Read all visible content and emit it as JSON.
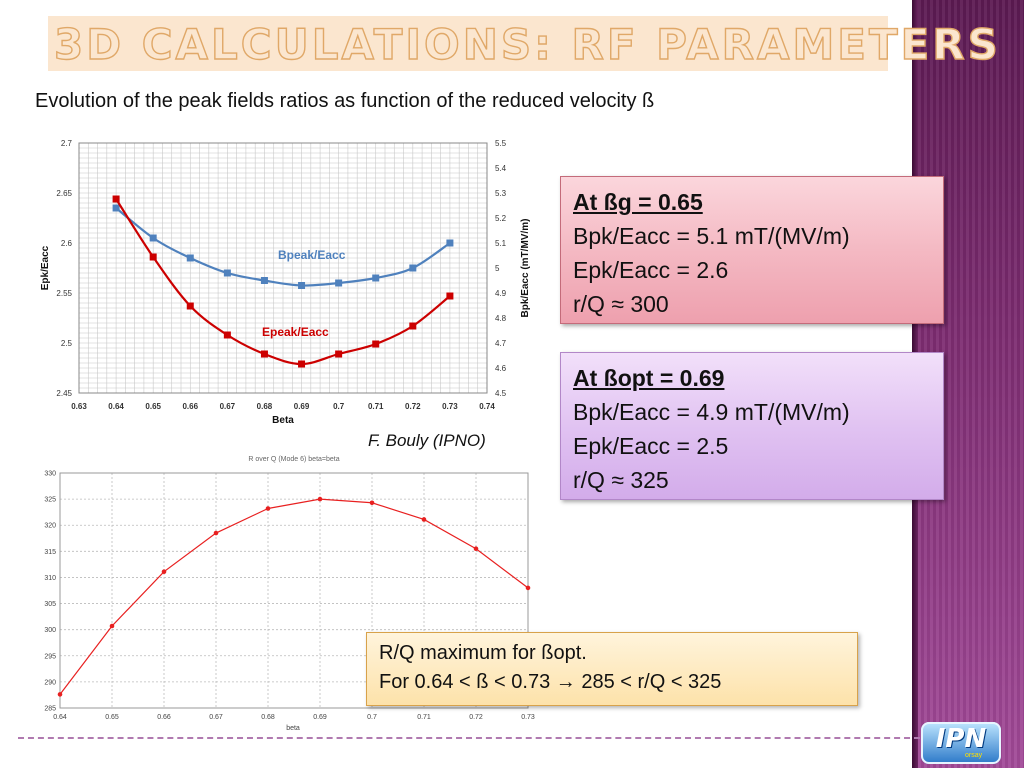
{
  "slide": {
    "title": "3D CALCULATIONS: RF PARAMETERS",
    "subtitle": "Evolution of the peak fields ratios as function of the reduced velocity ß",
    "credit": "F. Bouly (IPNO)"
  },
  "colors": {
    "accent": "#e0a868",
    "side_panel": "#7e2d72",
    "bpk_series": "#4f81bd",
    "epk_series": "#cc0000",
    "rq_series": "#e82020"
  },
  "boxes": [
    {
      "heading": "At ßg = 0.65",
      "lines": [
        "Bpk/Eacc = 5.1 mT/(MV/m)",
        "Epk/Eacc = 2.6",
        "r/Q ≈ 300"
      ]
    },
    {
      "heading": "At ßopt = 0.69",
      "lines": [
        "Bpk/Eacc = 4.9 mT/(MV/m)",
        "Epk/Eacc = 2.5",
        "r/Q ≈ 325"
      ]
    }
  ],
  "summary": {
    "line1": "R/Q maximum for ßopt.",
    "line2": "For 0.64 < ß < 0.73 →  285 < r/Q < 325"
  },
  "logo": {
    "text": "IPN",
    "sub": "orsay"
  },
  "chart_data": [
    {
      "type": "line",
      "title": "",
      "xlabel": "Beta",
      "ylabel": "Epk/Eacc",
      "y2label": "Bpk/Eacc (mT/MV/m)",
      "xlim": [
        0.63,
        0.74
      ],
      "ylim": [
        2.45,
        2.7
      ],
      "y2lim": [
        4.5,
        5.5
      ],
      "xticks": [
        "0.63",
        "0.64",
        "0.65",
        "0.66",
        "0.67",
        "0.68",
        "0.69",
        "0.7",
        "0.71",
        "0.72",
        "0.73",
        "0.74"
      ],
      "yticks": [
        "2.45",
        "2.5",
        "2.55",
        "2.6",
        "2.65",
        "2.7"
      ],
      "y2ticks": [
        "4.5",
        "4.6",
        "4.7",
        "4.8",
        "4.9",
        "5",
        "5.1",
        "5.2",
        "5.3",
        "5.4",
        "5.5"
      ],
      "x": [
        0.64,
        0.65,
        0.66,
        0.67,
        0.68,
        0.69,
        0.7,
        0.71,
        0.72,
        0.73
      ],
      "grid": true,
      "series": [
        {
          "name": "Bpeak/Eacc",
          "axis": "right",
          "values": [
            5.24,
            5.12,
            5.04,
            4.98,
            4.95,
            4.93,
            4.94,
            4.96,
            5.0,
            5.1
          ]
        },
        {
          "name": "Epeak/Eacc",
          "axis": "left",
          "values": [
            2.644,
            2.586,
            2.537,
            2.508,
            2.489,
            2.479,
            2.489,
            2.499,
            2.517,
            2.547
          ]
        }
      ]
    },
    {
      "type": "line",
      "title": "R over Q (Mode 6) beta=beta",
      "xlabel": "beta",
      "ylabel": "",
      "xlim": [
        0.64,
        0.73
      ],
      "ylim": [
        285,
        330
      ],
      "xticks": [
        "0.64",
        "0.65",
        "0.66",
        "0.67",
        "0.68",
        "0.69",
        "0.7",
        "0.71",
        "0.72",
        "0.73"
      ],
      "yticks": [
        "285",
        "290",
        "295",
        "300",
        "305",
        "310",
        "315",
        "320",
        "325",
        "330"
      ],
      "grid": true,
      "x": [
        0.64,
        0.65,
        0.66,
        0.67,
        0.68,
        0.69,
        0.7,
        0.71,
        0.72,
        0.73
      ],
      "series": [
        {
          "name": "R over Q",
          "values": [
            287.6,
            300.7,
            311.1,
            318.5,
            323.2,
            325.0,
            324.3,
            321.1,
            315.5,
            308.0
          ]
        }
      ]
    }
  ]
}
